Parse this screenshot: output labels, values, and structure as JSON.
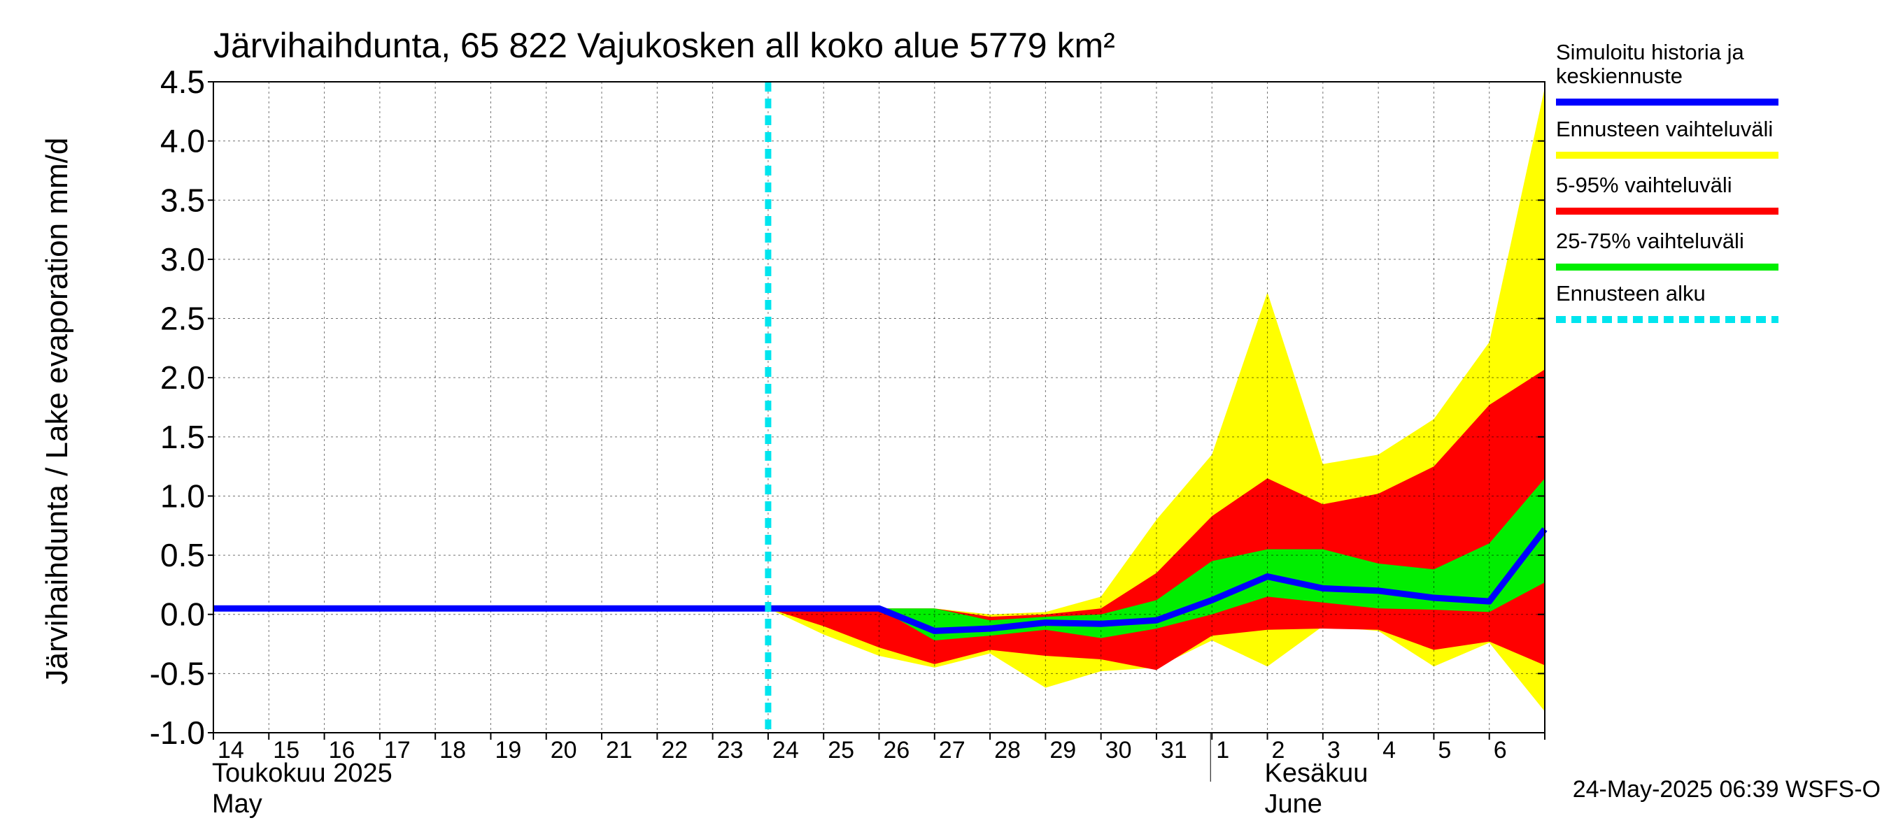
{
  "chart_data": {
    "type": "area",
    "title": "Järvihaihdunta, 65 822 Vajukosken all koko alue 5779 km²",
    "ylabel": "Järvihaihdunta / Lake evaporation   mm/d",
    "xlabel": "",
    "ylim": [
      -1.0,
      4.5
    ],
    "yticks": [
      "4.5",
      "4.0",
      "3.5",
      "3.0",
      "2.5",
      "2.0",
      "1.5",
      "1.0",
      "0.5",
      "0.0",
      "-0.5",
      "-1.0"
    ],
    "grid": true,
    "x_tick_labels": [
      "14",
      "15",
      "16",
      "17",
      "18",
      "19",
      "20",
      "21",
      "22",
      "23",
      "24",
      "25",
      "26",
      "27",
      "28",
      "29",
      "30",
      "31",
      "1",
      "2",
      "3",
      "4",
      "5",
      "6"
    ],
    "month_labels": [
      {
        "fi": "Toukokuu  2025",
        "en": "May"
      },
      {
        "fi": "Kesäkuu",
        "en": "June"
      }
    ],
    "x_dates": [
      "2025-05-14",
      "2025-05-15",
      "2025-05-16",
      "2025-05-17",
      "2025-05-18",
      "2025-05-19",
      "2025-05-20",
      "2025-05-21",
      "2025-05-22",
      "2025-05-23",
      "2025-05-24",
      "2025-05-25",
      "2025-05-26",
      "2025-05-27",
      "2025-05-28",
      "2025-05-29",
      "2025-05-30",
      "2025-05-31",
      "2025-06-01",
      "2025-06-02",
      "2025-06-03",
      "2025-06-04",
      "2025-06-05",
      "2025-06-06",
      "2025-06-07"
    ],
    "forecast_start": "2025-05-24",
    "series": [
      {
        "name": "Ennusteen vaihteluväli",
        "color": "#ffff00",
        "upper": [
          0.05,
          0.05,
          0.05,
          0.05,
          0.05,
          0.05,
          0.05,
          0.05,
          0.05,
          0.05,
          0.05,
          0.05,
          0.05,
          0.05,
          0.0,
          0.02,
          0.15,
          0.8,
          1.35,
          2.72,
          1.27,
          1.35,
          1.65,
          2.3,
          4.45
        ],
        "lower": [
          0.05,
          0.05,
          0.05,
          0.05,
          0.05,
          0.05,
          0.05,
          0.05,
          0.05,
          0.05,
          0.05,
          -0.17,
          -0.35,
          -0.45,
          -0.33,
          -0.62,
          -0.48,
          -0.45,
          -0.22,
          -0.44,
          -0.1,
          -0.14,
          -0.44,
          -0.24,
          -0.82
        ]
      },
      {
        "name": "5-95% vaihteluväli",
        "color": "#ff0000",
        "upper": [
          0.05,
          0.05,
          0.05,
          0.05,
          0.05,
          0.05,
          0.05,
          0.05,
          0.05,
          0.05,
          0.05,
          0.05,
          0.05,
          0.05,
          -0.02,
          0.0,
          0.05,
          0.35,
          0.83,
          1.15,
          0.93,
          1.02,
          1.25,
          1.77,
          2.07
        ],
        "lower": [
          0.05,
          0.05,
          0.05,
          0.05,
          0.05,
          0.05,
          0.05,
          0.05,
          0.05,
          0.05,
          0.05,
          -0.1,
          -0.28,
          -0.42,
          -0.3,
          -0.35,
          -0.38,
          -0.47,
          -0.18,
          -0.13,
          -0.12,
          -0.13,
          -0.3,
          -0.23,
          -0.43
        ]
      },
      {
        "name": "25-75% vaihteluväli",
        "color": "#00ee00",
        "upper": [
          0.05,
          0.05,
          0.05,
          0.05,
          0.05,
          0.05,
          0.05,
          0.05,
          0.05,
          0.05,
          0.05,
          0.05,
          0.05,
          0.05,
          -0.05,
          -0.02,
          0.0,
          0.12,
          0.45,
          0.55,
          0.55,
          0.43,
          0.38,
          0.6,
          1.15
        ],
        "lower": [
          0.05,
          0.05,
          0.05,
          0.05,
          0.05,
          0.05,
          0.05,
          0.05,
          0.05,
          0.05,
          0.05,
          0.05,
          0.05,
          -0.22,
          -0.18,
          -0.13,
          -0.2,
          -0.12,
          0.0,
          0.15,
          0.1,
          0.05,
          0.04,
          0.02,
          0.27
        ]
      },
      {
        "name": "Simuloitu historia ja keskiennuste",
        "color": "#0000ff",
        "values": [
          0.05,
          0.05,
          0.05,
          0.05,
          0.05,
          0.05,
          0.05,
          0.05,
          0.05,
          0.05,
          0.05,
          0.05,
          0.05,
          -0.14,
          -0.12,
          -0.07,
          -0.08,
          -0.05,
          0.12,
          0.32,
          0.22,
          0.2,
          0.14,
          0.11,
          0.72
        ]
      },
      {
        "name": "Ennusteen alku",
        "color": "#00e5ee"
      }
    ],
    "legend_placement": "right",
    "legend": [
      {
        "lines": [
          "Simuloitu historia ja",
          "keskiennuste"
        ],
        "color": "#0000ff",
        "style": "solid"
      },
      {
        "lines": [
          "Ennusteen vaihteluväli"
        ],
        "color": "#ffff00",
        "style": "solid"
      },
      {
        "lines": [
          "5-95% vaihteluväli"
        ],
        "color": "#ff0000",
        "style": "solid"
      },
      {
        "lines": [
          "25-75% vaihteluväli"
        ],
        "color": "#00ee00",
        "style": "solid"
      },
      {
        "lines": [
          "Ennusteen alku"
        ],
        "color": "#00e5ee",
        "style": "dashed"
      }
    ],
    "footer": "24-May-2025 06:39 WSFS-O"
  }
}
